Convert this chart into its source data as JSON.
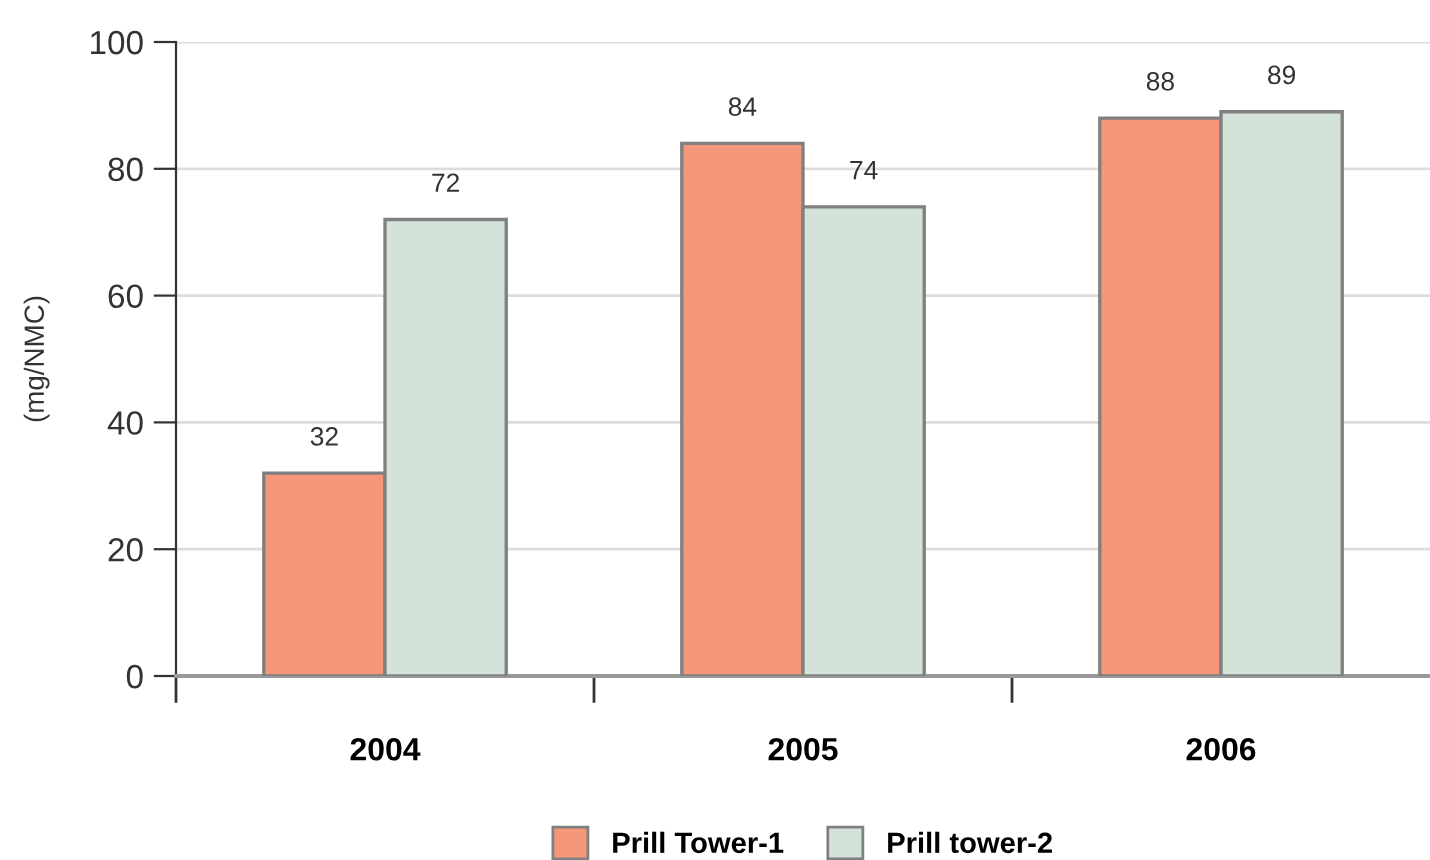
{
  "chart_data": {
    "type": "bar",
    "ylabel": "(mg/NMC)",
    "categories": [
      "2004",
      "2005",
      "2006"
    ],
    "series": [
      {
        "name": "Prill Tower-1",
        "color": "#f4977a",
        "values": [
          32,
          84,
          88
        ]
      },
      {
        "name": "Prill tower-2",
        "color": "#d3e3da",
        "values": [
          72,
          74,
          89
        ]
      }
    ],
    "ylim": [
      0,
      100
    ],
    "yticks": [
      0,
      20,
      40,
      60,
      80,
      100
    ],
    "grid": "y",
    "legend": "bottom",
    "data_labels": true
  }
}
